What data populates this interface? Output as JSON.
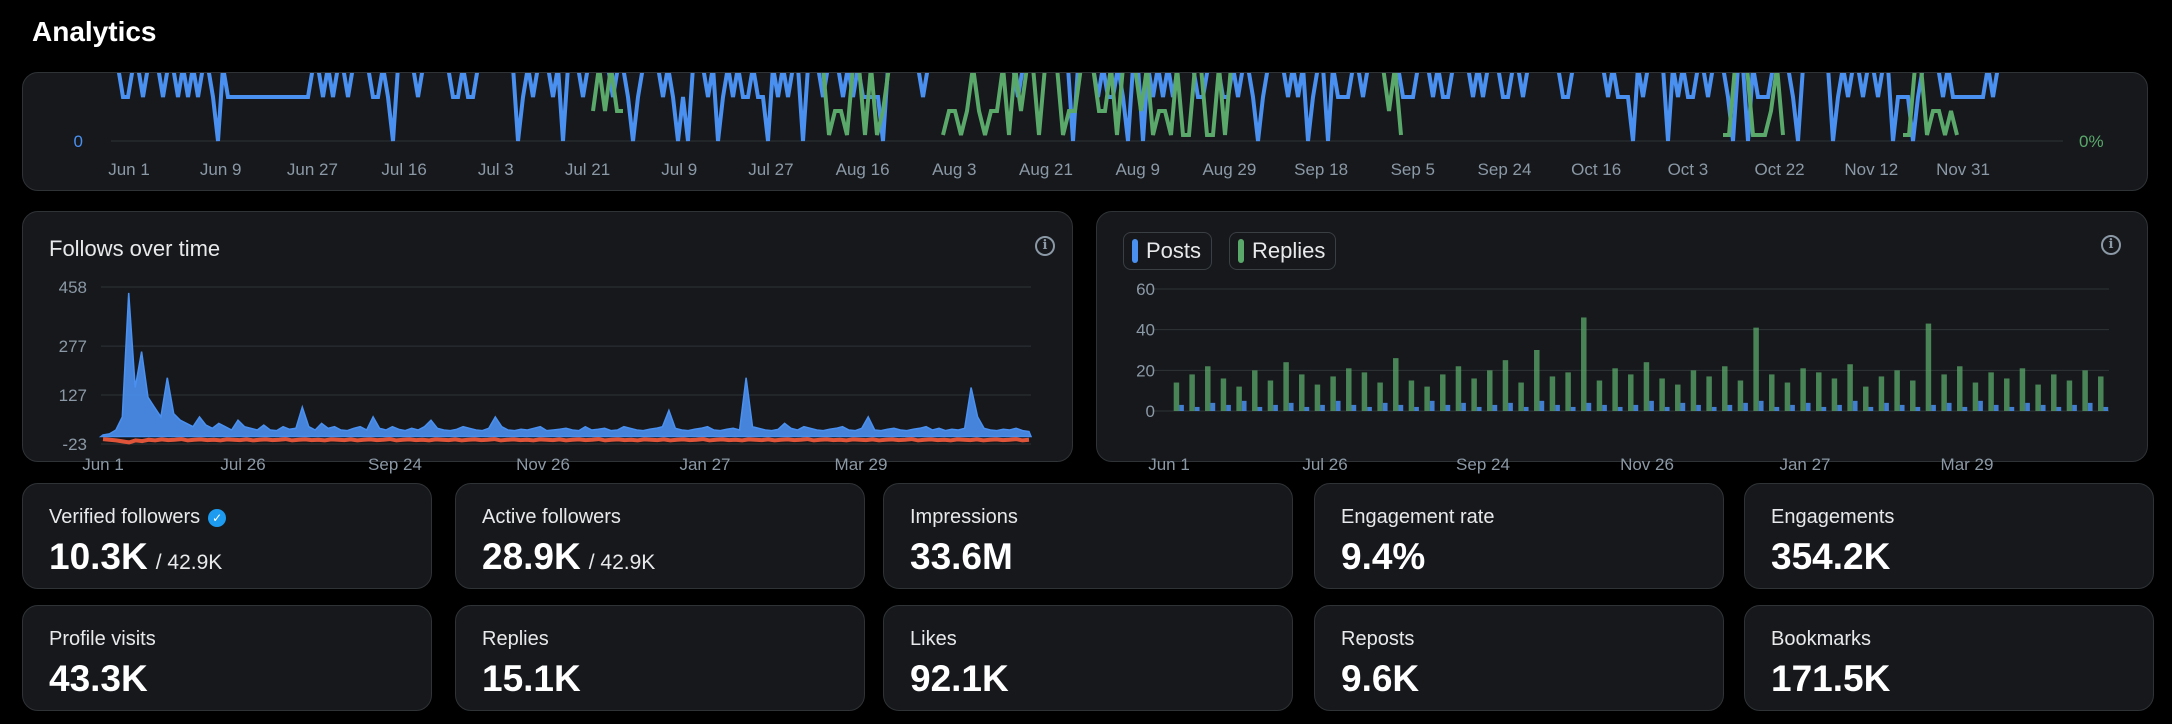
{
  "page": {
    "title": "Analytics"
  },
  "top_chart": {
    "y_label": "0",
    "right_label": "0%",
    "x_ticks": [
      "Jun 1",
      "Jun 9",
      "Jun 27",
      "Jul 16",
      "Jul 3",
      "Jul 21",
      "Jul 9",
      "Jul 27",
      "Aug 16",
      "Aug 3",
      "Aug 21",
      "Aug 9",
      "Aug 29",
      "Sep 18",
      "Sep 5",
      "Sep 24",
      "Oct 16",
      "Oct 3",
      "Oct 22",
      "Nov 12",
      "Nov 31"
    ],
    "colors": {
      "primary": "#4a90f0",
      "secondary": "#5aa86a"
    }
  },
  "follows_chart": {
    "title": "Follows over time",
    "info_icon": "info-icon"
  },
  "posts_chart": {
    "info_icon": "info-icon",
    "legend": [
      {
        "label": "Posts",
        "color": "#4a90f0"
      },
      {
        "label": "Replies",
        "color": "#5aa86a"
      }
    ]
  },
  "chart_data": [
    {
      "type": "line",
      "yticks": [
        -23,
        127,
        277,
        458
      ],
      "ylim": [
        -23,
        458
      ],
      "xticks": [
        "Jun 1",
        "Jul 26",
        "Sep 24",
        "Nov 26",
        "Jan 27",
        "Mar 29"
      ],
      "series": [
        {
          "color": "#4a90f0",
          "values": [
            5,
            8,
            20,
            60,
            440,
            150,
            260,
            120,
            90,
            60,
            180,
            70,
            50,
            40,
            30,
            60,
            35,
            25,
            40,
            30,
            20,
            50,
            30,
            25,
            20,
            35,
            20,
            18,
            30,
            22,
            25,
            90,
            30,
            20,
            40,
            25,
            30,
            20,
            18,
            25,
            30,
            20,
            60,
            25,
            20,
            30,
            22,
            18,
            25,
            20,
            30,
            50,
            25,
            20,
            18,
            22,
            30,
            25,
            20,
            18,
            25,
            60,
            30,
            20,
            18,
            22,
            20,
            25,
            30,
            18,
            20,
            22,
            25,
            20,
            18,
            30,
            20,
            22,
            25,
            18,
            20,
            30,
            25,
            20,
            18,
            22,
            25,
            30,
            80,
            25,
            20,
            18,
            22,
            25,
            30,
            20,
            18,
            22,
            25,
            20,
            180,
            30,
            25,
            20,
            18,
            22,
            40,
            25,
            20,
            30,
            25,
            20,
            18,
            22,
            25,
            30,
            20,
            18,
            25,
            60,
            20,
            18,
            22,
            25,
            20,
            18,
            22,
            25,
            30,
            20,
            25,
            18,
            22,
            20,
            25,
            150,
            60,
            25,
            20,
            18,
            22,
            20,
            25,
            18,
            15
          ]
        },
        {
          "color": "#e0553a",
          "values": [
            -8,
            -10,
            -12,
            -15,
            -18,
            -12,
            -14,
            -10,
            -12,
            -9,
            -11,
            -10,
            -8,
            -12,
            -10,
            -9,
            -11,
            -10,
            -12,
            -9,
            -10,
            -11,
            -9,
            -12,
            -10,
            -9,
            -11,
            -10,
            -8,
            -12,
            -10,
            -9,
            -11,
            -10,
            -12,
            -9,
            -10,
            -11,
            -9,
            -12,
            -10,
            -9,
            -11,
            -10,
            -8,
            -12,
            -10,
            -9,
            -11,
            -10,
            -12,
            -9,
            -10,
            -11,
            -9,
            -12,
            -10,
            -9,
            -11,
            -10,
            -8,
            -12,
            -10,
            -9,
            -11,
            -10,
            -12,
            -9,
            -10,
            -11,
            -9,
            -12,
            -10,
            -9,
            -11,
            -10,
            -8,
            -12,
            -10,
            -9,
            -11,
            -10,
            -12,
            -9,
            -10,
            -11,
            -9,
            -12,
            -10,
            -9,
            -11,
            -10,
            -8,
            -12,
            -10,
            -9,
            -11,
            -10,
            -12,
            -9,
            -10,
            -11,
            -9,
            -12,
            -10,
            -9,
            -11,
            -10,
            -8,
            -12,
            -10,
            -9,
            -11,
            -10,
            -12,
            -9,
            -10,
            -11,
            -9,
            -12,
            -10,
            -9,
            -11,
            -10,
            -8,
            -12,
            -10,
            -9,
            -11,
            -10,
            -12,
            -9,
            -10,
            -11,
            -9,
            -12,
            -10,
            -9,
            -11,
            -10,
            -8,
            -12,
            -10
          ]
        }
      ]
    },
    {
      "type": "bar",
      "yticks": [
        0,
        20,
        40,
        60
      ],
      "ylim": [
        0,
        60
      ],
      "xticks": [
        "Jun 1",
        "Jul 26",
        "Sep 24",
        "Nov 26",
        "Jan 27",
        "Mar 29"
      ],
      "series": [
        {
          "name": "Posts",
          "color": "#4a90f0",
          "values": [
            3,
            2,
            4,
            3,
            5,
            2,
            3,
            4,
            2,
            3,
            5,
            3,
            2,
            4,
            3,
            2,
            5,
            3,
            4,
            2,
            3,
            4,
            2,
            5,
            3,
            2,
            4,
            3,
            2,
            3,
            5,
            2,
            4,
            3,
            2,
            3,
            4,
            5,
            2,
            3,
            4,
            2,
            3,
            5,
            2,
            4,
            3,
            2,
            3,
            4,
            2,
            5,
            3,
            2,
            4,
            3,
            2,
            3,
            4,
            2
          ]
        },
        {
          "name": "Replies",
          "color": "#5aa86a",
          "values": [
            14,
            18,
            22,
            16,
            12,
            20,
            15,
            24,
            18,
            13,
            17,
            21,
            19,
            14,
            26,
            15,
            12,
            18,
            22,
            16,
            20,
            25,
            14,
            30,
            17,
            19,
            46,
            15,
            21,
            18,
            24,
            16,
            13,
            20,
            17,
            22,
            15,
            41,
            18,
            14,
            21,
            19,
            16,
            23,
            12,
            17,
            20,
            15,
            43,
            18,
            22,
            14,
            19,
            16,
            21,
            13,
            18,
            15,
            20,
            17
          ]
        }
      ]
    }
  ],
  "stats": [
    {
      "label": "Verified followers",
      "value": "10.3K",
      "sub": "/ 42.9K",
      "icon": "verified-icon"
    },
    {
      "label": "Active followers",
      "value": "28.9K",
      "sub": "/ 42.9K"
    },
    {
      "label": "Impressions",
      "value": "33.6M"
    },
    {
      "label": "Engagement rate",
      "value": "9.4%"
    },
    {
      "label": "Engagements",
      "value": "354.2K"
    },
    {
      "label": "Profile visits",
      "value": "43.3K"
    },
    {
      "label": "Replies",
      "value": "15.1K"
    },
    {
      "label": "Likes",
      "value": "92.1K"
    },
    {
      "label": "Reposts",
      "value": "9.6K"
    },
    {
      "label": "Bookmarks",
      "value": "171.5K"
    }
  ]
}
